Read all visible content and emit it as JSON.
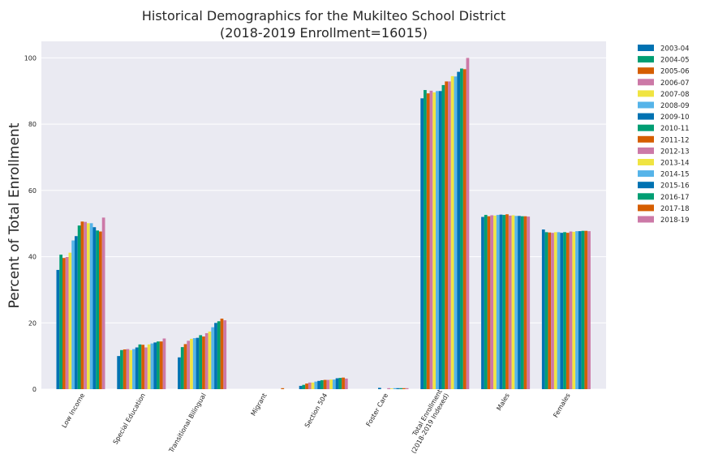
{
  "chart_data": {
    "type": "bar",
    "title_lines": [
      "Historical Demographics for the Mukilteo School District",
      "(2018-2019 Enrollment=16015)"
    ],
    "xlabel": "",
    "ylabel": "Percent of Total Enrollment",
    "ylim": [
      0,
      105
    ],
    "yticks": [
      0,
      20,
      40,
      60,
      80,
      100
    ],
    "grid": true,
    "legend_position": "outside-right",
    "categories": [
      "Low Income",
      "Special Education",
      "Transitional Bilingual",
      "Migrant",
      "Section 504",
      "Foster Care",
      "Total Enrollment\n(2018-2019 Indexed)",
      "Males",
      "Females"
    ],
    "series": [
      {
        "name": "2003-04",
        "color": "#0072b2",
        "values": [
          36.0,
          10.0,
          9.6,
          0.0,
          1.0,
          0.0,
          87.8,
          52.0,
          48.2
        ]
      },
      {
        "name": "2004-05",
        "color": "#009e73",
        "values": [
          40.6,
          11.8,
          12.7,
          0.0,
          1.3,
          0.0,
          90.3,
          52.6,
          47.4
        ]
      },
      {
        "name": "2005-06",
        "color": "#d55e00",
        "values": [
          39.6,
          12.0,
          13.6,
          0.0,
          1.7,
          0.0,
          89.3,
          52.2,
          47.3
        ]
      },
      {
        "name": "2006-07",
        "color": "#cc79a7",
        "values": [
          39.9,
          12.1,
          14.6,
          0.0,
          2.0,
          0.0,
          90.1,
          52.5,
          47.2
        ]
      },
      {
        "name": "2007-08",
        "color": "#f0e442",
        "values": [
          41.2,
          11.8,
          15.2,
          0.0,
          2.0,
          0.0,
          89.6,
          52.4,
          47.4
        ]
      },
      {
        "name": "2008-09",
        "color": "#56b4e9",
        "values": [
          44.9,
          12.1,
          15.4,
          0.0,
          2.3,
          0.0,
          90.0,
          52.6,
          47.4
        ]
      },
      {
        "name": "2009-10",
        "color": "#0072b2",
        "values": [
          46.2,
          12.6,
          15.5,
          0.0,
          2.5,
          0.4,
          90.0,
          52.7,
          47.2
        ]
      },
      {
        "name": "2010-11",
        "color": "#009e73",
        "values": [
          49.4,
          13.5,
          16.3,
          0.0,
          2.7,
          0.0,
          91.8,
          52.6,
          47.4
        ]
      },
      {
        "name": "2011-12",
        "color": "#d55e00",
        "values": [
          50.6,
          13.4,
          15.9,
          0.0,
          2.8,
          0.0,
          92.9,
          52.8,
          47.2
        ]
      },
      {
        "name": "2012-13",
        "color": "#cc79a7",
        "values": [
          50.5,
          12.6,
          16.9,
          0.0,
          2.8,
          0.3,
          92.9,
          52.4,
          47.6
        ]
      },
      {
        "name": "2013-14",
        "color": "#f0e442",
        "values": [
          50.1,
          13.5,
          17.4,
          0.0,
          2.9,
          0.2,
          94.5,
          52.5,
          47.5
        ]
      },
      {
        "name": "2014-15",
        "color": "#56b4e9",
        "values": [
          50.1,
          13.8,
          18.7,
          0.0,
          2.9,
          0.3,
          94.4,
          52.3,
          47.7
        ]
      },
      {
        "name": "2015-16",
        "color": "#0072b2",
        "values": [
          48.9,
          14.1,
          20.0,
          0.0,
          3.3,
          0.3,
          95.8,
          52.3,
          47.7
        ]
      },
      {
        "name": "2016-17",
        "color": "#009e73",
        "values": [
          47.9,
          14.4,
          20.5,
          0.0,
          3.4,
          0.3,
          96.8,
          52.2,
          47.8
        ]
      },
      {
        "name": "2017-18",
        "color": "#d55e00",
        "values": [
          47.6,
          14.4,
          21.3,
          0.3,
          3.5,
          0.3,
          96.6,
          52.2,
          47.8
        ]
      },
      {
        "name": "2018-19",
        "color": "#cc79a7",
        "values": [
          51.8,
          15.3,
          20.8,
          0.0,
          3.2,
          0.3,
          100.0,
          52.1,
          47.7
        ]
      }
    ]
  }
}
